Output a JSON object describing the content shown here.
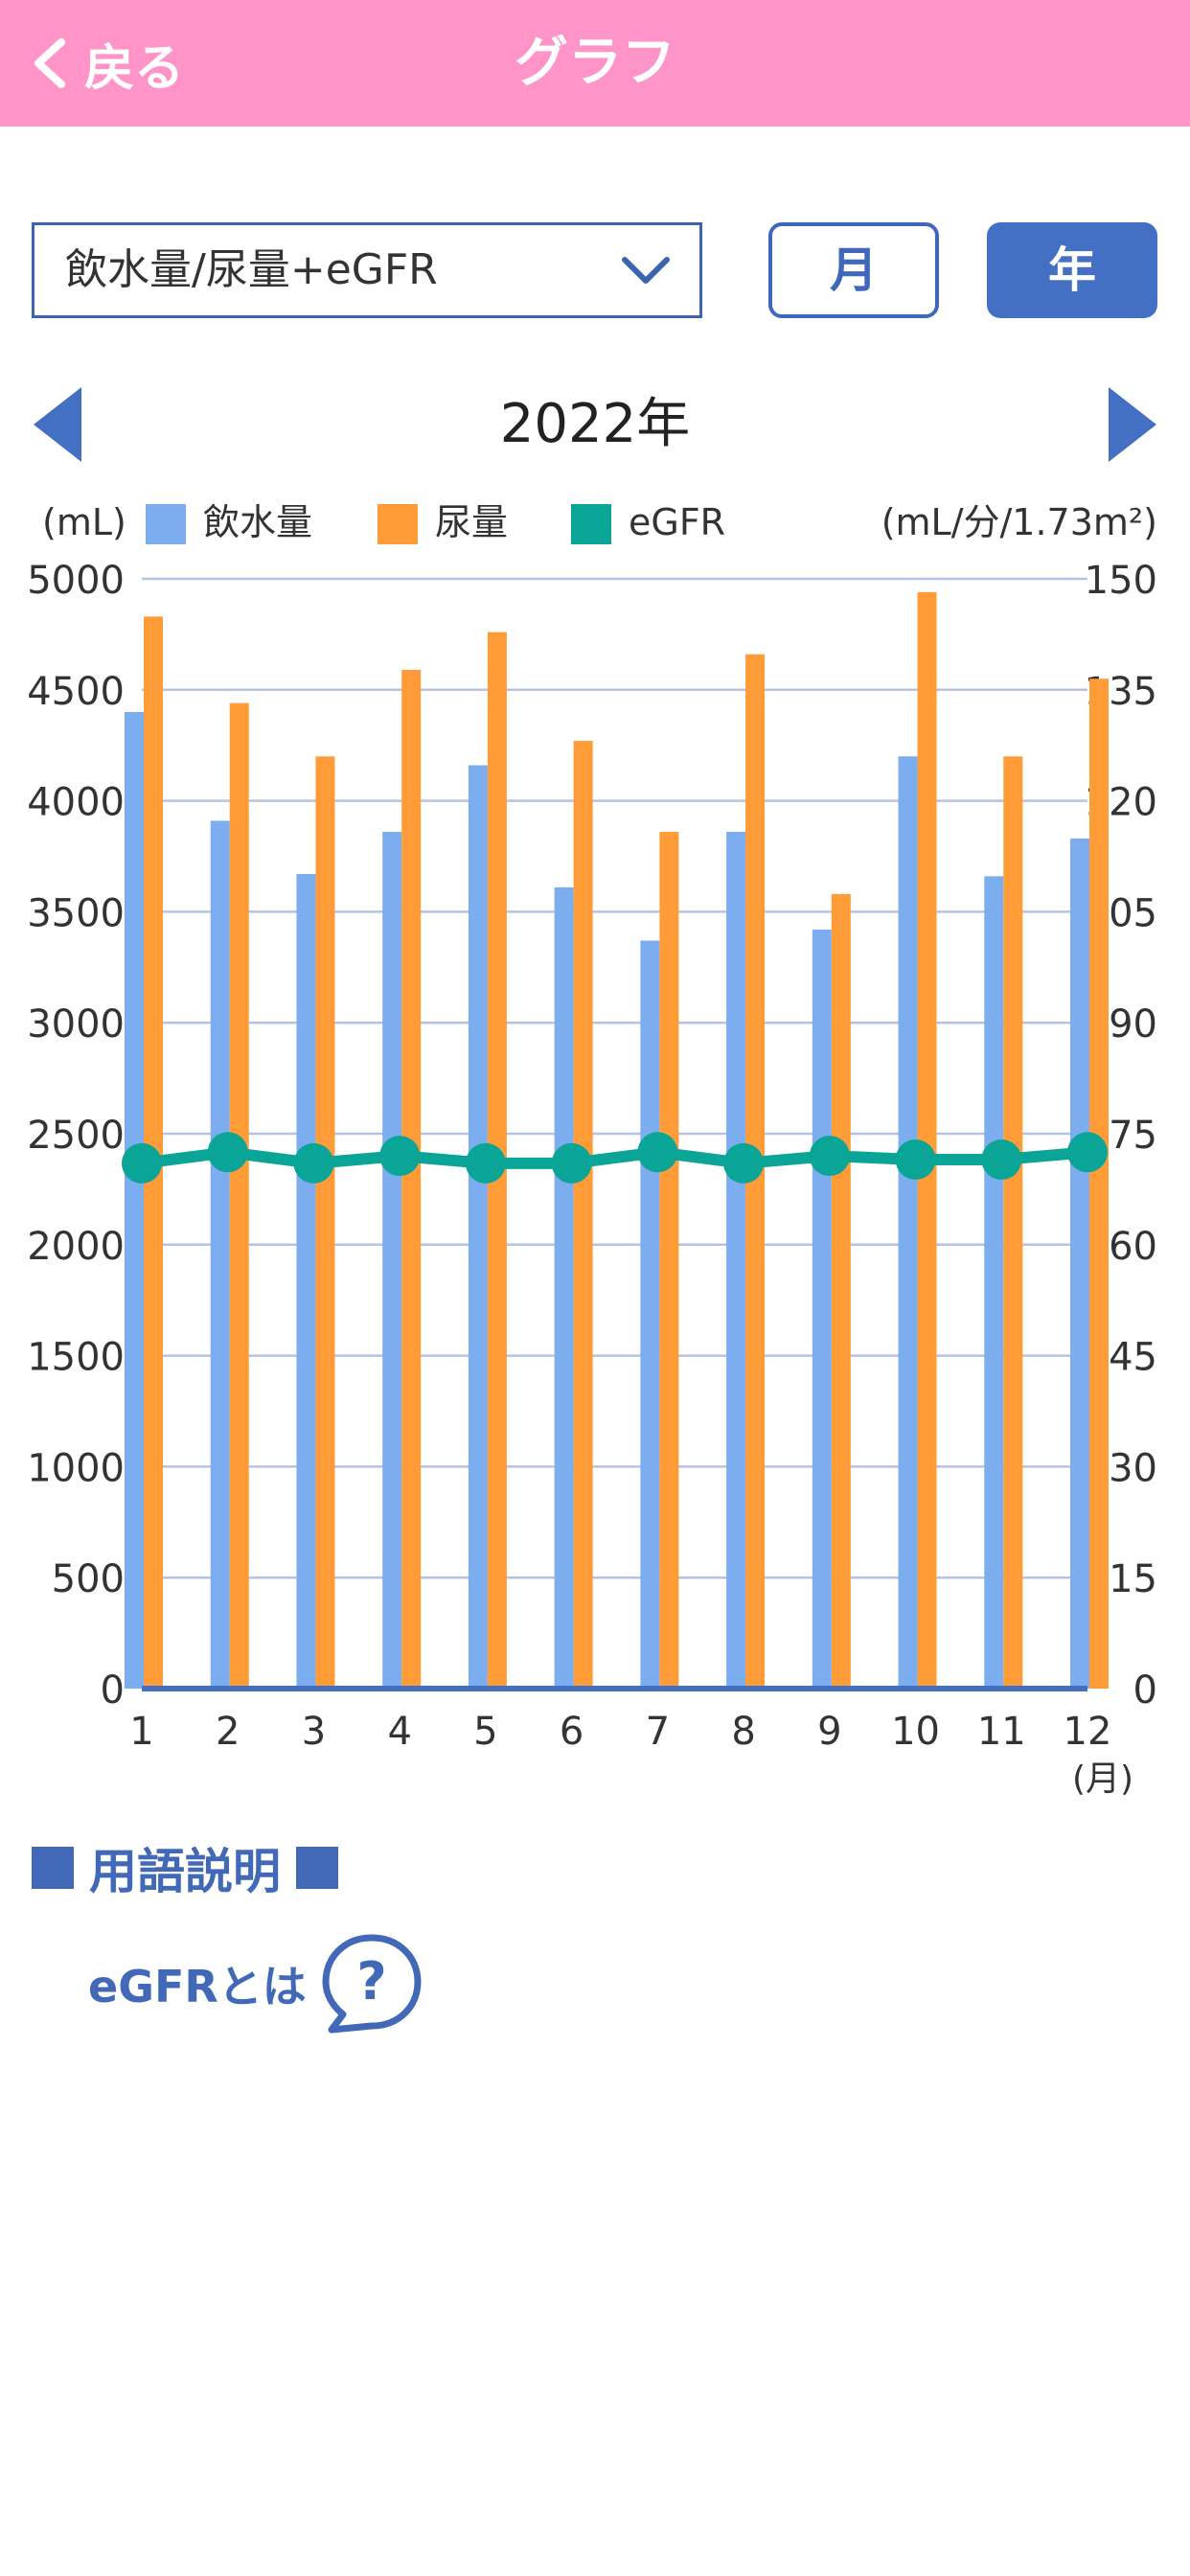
{
  "header": {
    "back_label": "戻る",
    "title": "グラフ"
  },
  "controls": {
    "select_value": "飲水量/尿量+eGFR",
    "month_label": "月",
    "year_label": "年",
    "period_label": "2022年"
  },
  "chart_data": {
    "type": "bar",
    "left_unit": "(mL)",
    "right_unit": "(mL/分/1.73m²)",
    "x_unit": "(月)",
    "categories": [
      "1",
      "2",
      "3",
      "4",
      "5",
      "6",
      "7",
      "8",
      "9",
      "10",
      "11",
      "12"
    ],
    "y_left_lim": [
      0,
      5000
    ],
    "y_left_ticks": [
      "0",
      "500",
      "1000",
      "1500",
      "2000",
      "2500",
      "3000",
      "3500",
      "4000",
      "4500",
      "5000"
    ],
    "y_right_lim": [
      0,
      150
    ],
    "y_right_ticks": [
      "0",
      "15",
      "30",
      "45",
      "60",
      "75",
      "90",
      "105",
      "120",
      "135",
      "150"
    ],
    "grid": true,
    "legend_position": "top",
    "series": [
      {
        "name": "飲水量",
        "kind": "bar",
        "axis": "left",
        "color": "#7cadef",
        "values": [
          4400,
          3910,
          3670,
          3860,
          4160,
          3610,
          3370,
          3860,
          3420,
          4200,
          3660,
          3830
        ]
      },
      {
        "name": "尿量",
        "kind": "bar",
        "axis": "left",
        "color": "#ff9c38",
        "values": [
          4830,
          4440,
          4200,
          4590,
          4760,
          4270,
          3860,
          4660,
          3580,
          4940,
          4200,
          4550
        ]
      },
      {
        "name": "eGFR",
        "kind": "line",
        "axis": "right",
        "color": "#0aa596",
        "values": [
          71,
          72.5,
          71,
          72,
          71,
          71,
          72.5,
          71,
          72,
          71.5,
          71.5,
          72.5
        ]
      }
    ]
  },
  "glossary": {
    "heading": "用語説明",
    "egfr_link": "eGFRとは"
  }
}
